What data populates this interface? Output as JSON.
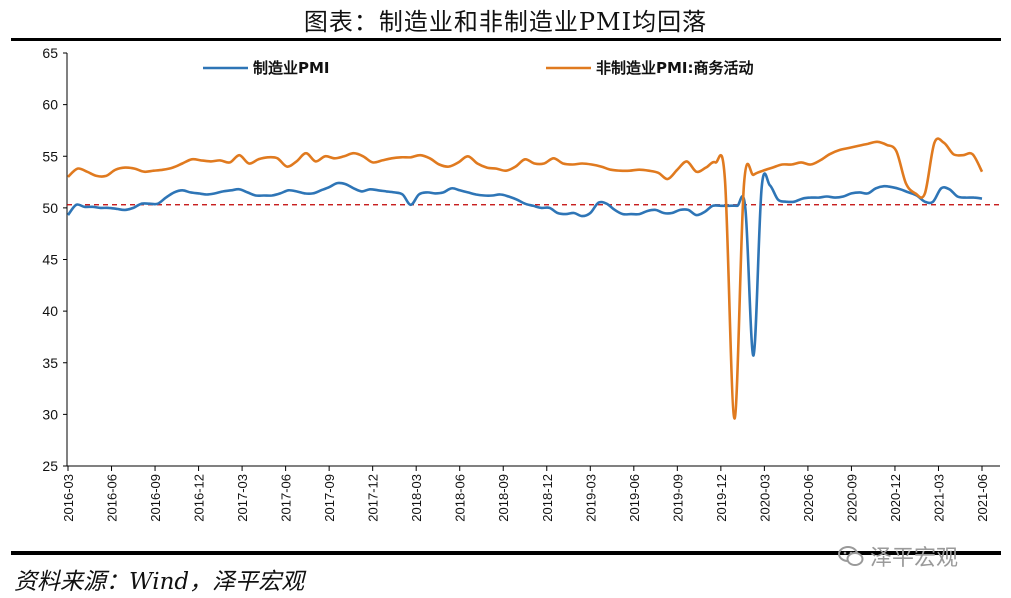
{
  "title": "图表：制造业和非制造业PMI均回落",
  "source": "资料来源：Wind，泽平宏观",
  "watermark": "泽平宏观",
  "chart_data": {
    "type": "line",
    "x_ticks": [
      "2016-03",
      "2016-06",
      "2016-09",
      "2016-12",
      "2017-03",
      "2017-06",
      "2017-09",
      "2017-12",
      "2018-03",
      "2018-06",
      "2018-09",
      "2018-12",
      "2019-03",
      "2019-06",
      "2019-09",
      "2019-12",
      "2020-03",
      "2020-06",
      "2020-09",
      "2020-12",
      "2021-03",
      "2021-06"
    ],
    "ylim": [
      25,
      65
    ],
    "y_ticks": [
      25,
      30,
      35,
      40,
      45,
      50,
      55,
      60,
      65
    ],
    "reference_line": 50.3,
    "legend_position": "top",
    "series": [
      {
        "name": "制造业PMI",
        "color": "#2E75B6",
        "values": [
          49.3,
          50.3,
          50.1,
          50.1,
          50.0,
          50.0,
          49.9,
          49.8,
          50.0,
          50.4,
          50.4,
          50.4,
          51.0,
          51.5,
          51.7,
          51.5,
          51.4,
          51.3,
          51.4,
          51.6,
          51.7,
          51.8,
          51.5,
          51.2,
          51.2,
          51.2,
          51.4,
          51.7,
          51.6,
          51.4,
          51.4,
          51.7,
          52.0,
          52.4,
          52.3,
          51.9,
          51.6,
          51.8,
          51.7,
          51.6,
          51.5,
          51.3,
          50.3,
          51.3,
          51.5,
          51.4,
          51.5,
          51.9,
          51.7,
          51.5,
          51.3,
          51.2,
          51.2,
          51.3,
          51.1,
          50.8,
          50.4,
          50.2,
          50.0,
          50.0,
          49.5,
          49.4,
          49.5,
          49.2,
          49.5,
          50.5,
          50.4,
          49.8,
          49.4,
          49.4,
          49.4,
          49.7,
          49.8,
          49.5,
          49.5,
          49.8,
          49.8,
          49.3,
          49.6,
          50.2,
          50.2,
          50.2,
          50.2,
          50.0,
          35.7,
          52.0,
          52.2,
          50.8,
          50.6,
          50.6,
          50.9,
          51.0,
          51.0,
          51.1,
          51.0,
          51.1,
          51.4,
          51.5,
          51.4,
          51.9,
          52.1,
          52.0,
          51.8,
          51.5,
          51.2,
          50.6,
          50.6,
          51.9,
          51.8,
          51.1,
          51.0,
          51.0,
          50.9
        ]
      },
      {
        "name": "非制造业PMI:商务活动",
        "color": "#E07A1F",
        "values": [
          53.0,
          53.8,
          53.5,
          53.1,
          53.1,
          53.7,
          53.9,
          53.8,
          53.5,
          53.6,
          53.7,
          53.9,
          54.3,
          54.7,
          54.6,
          54.5,
          54.6,
          54.4,
          55.1,
          54.3,
          54.7,
          54.9,
          54.8,
          54.0,
          54.5,
          55.3,
          54.5,
          55.0,
          54.8,
          55.0,
          55.3,
          55.0,
          54.4,
          54.6,
          54.8,
          54.9,
          54.9,
          55.1,
          54.8,
          54.2,
          54.0,
          54.4,
          55.0,
          54.3,
          53.9,
          53.8,
          53.6,
          54.0,
          54.7,
          54.3,
          54.3,
          54.8,
          54.3,
          54.2,
          54.3,
          54.2,
          54.0,
          53.7,
          53.6,
          53.6,
          53.7,
          53.6,
          53.4,
          52.8,
          53.7,
          54.5,
          53.5,
          53.9,
          54.4,
          52.8,
          29.6,
          52.3,
          53.2,
          53.6,
          53.9,
          54.2,
          54.2,
          54.4,
          54.2,
          54.6,
          55.2,
          55.6,
          55.8,
          56.0,
          56.2,
          56.4,
          56.1,
          55.5,
          52.4,
          51.4,
          51.4,
          56.3,
          56.3,
          55.2,
          55.1,
          55.2,
          53.5
        ]
      }
    ]
  }
}
